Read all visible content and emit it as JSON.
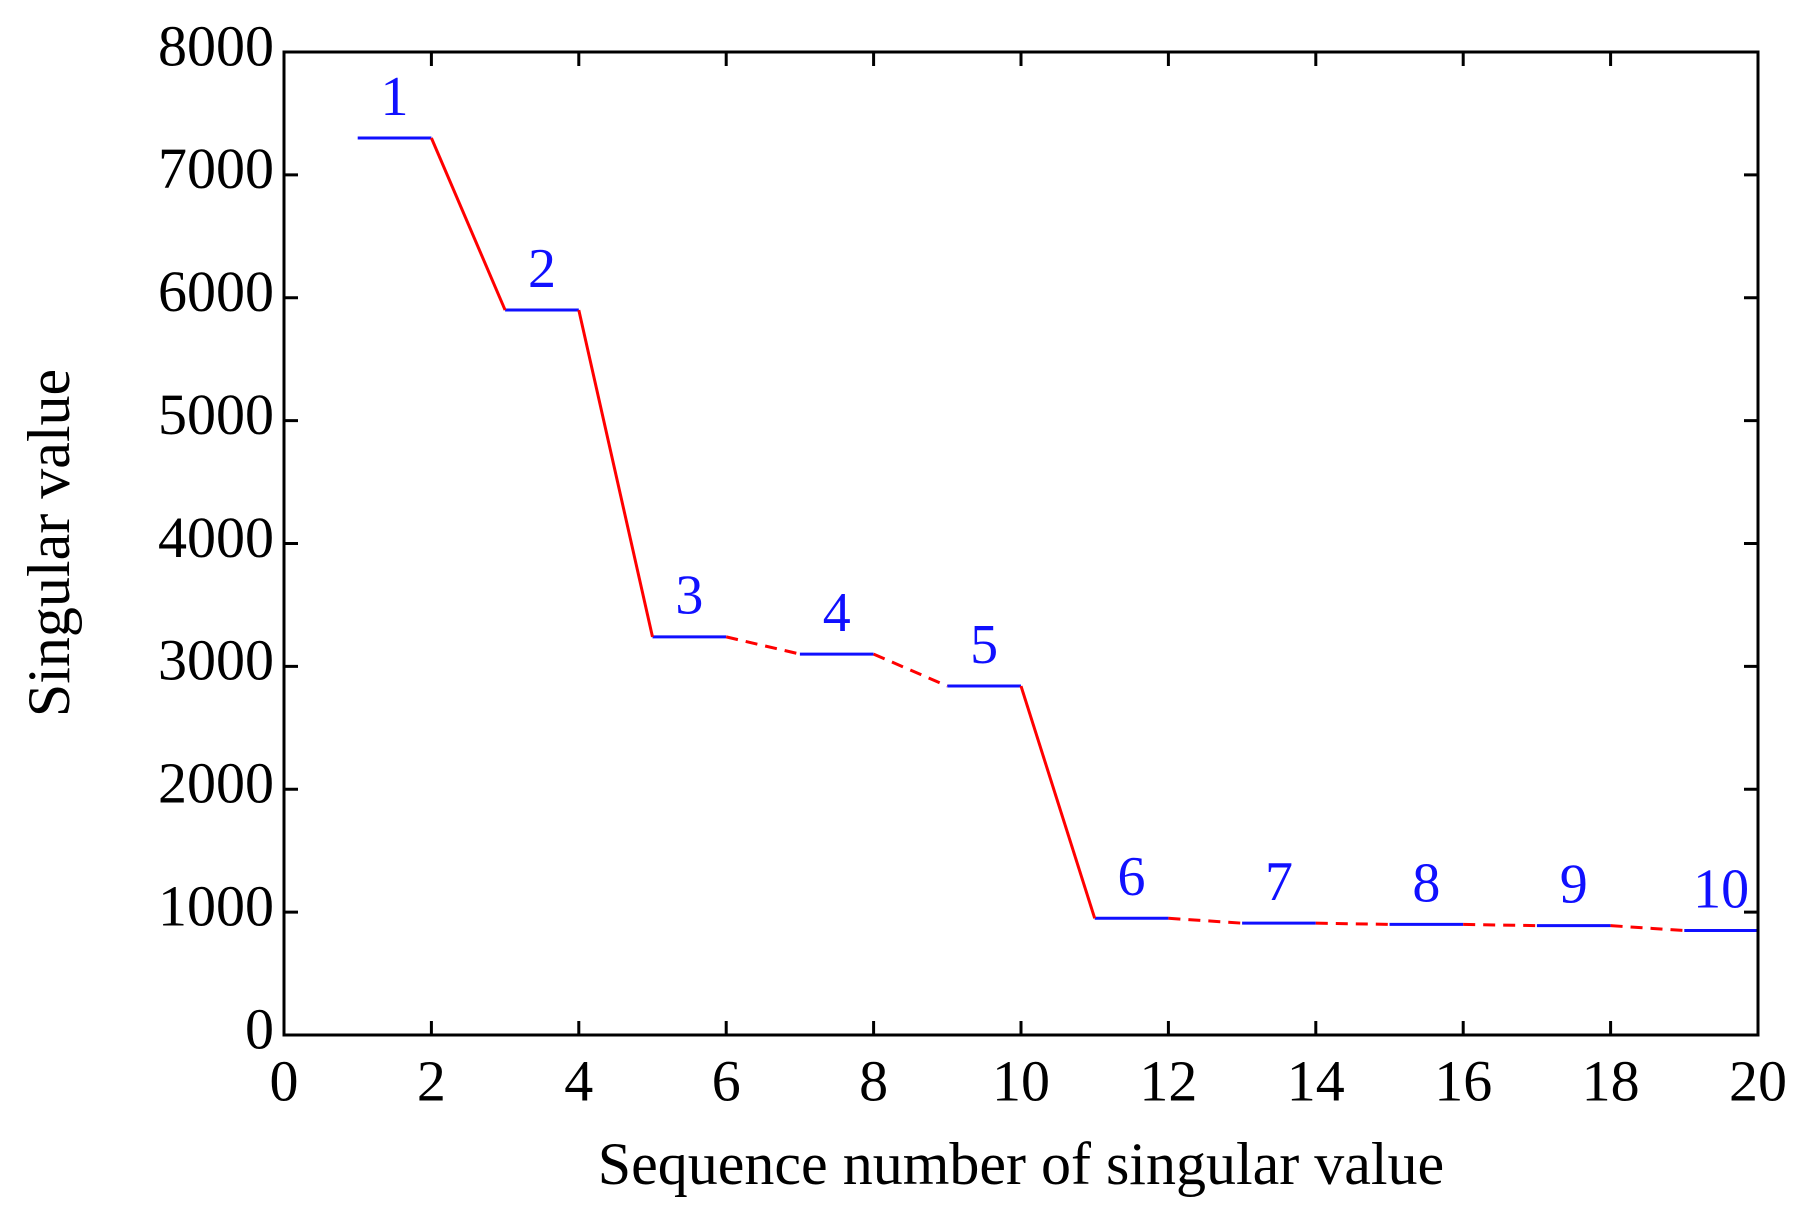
{
  "chart_data": {
    "type": "step-pairs",
    "xlabel": "Sequence number of singular value",
    "ylabel": "Singular value",
    "x": [
      1,
      2,
      3,
      4,
      5,
      6,
      7,
      8,
      9,
      10,
      11,
      12,
      13,
      14,
      15,
      16,
      17,
      18,
      19,
      20
    ],
    "values": [
      7300,
      7300,
      5900,
      5900,
      3240,
      3240,
      3100,
      3100,
      2840,
      2840,
      950,
      950,
      910,
      910,
      900,
      900,
      890,
      890,
      850,
      850
    ],
    "group_labels": [
      1,
      2,
      3,
      4,
      5,
      6,
      7,
      8,
      9,
      10
    ],
    "pair_color": "#1010ff",
    "link_color": "#ff0000",
    "link_styles": [
      "solid",
      "solid",
      "dashed",
      "dashed",
      "solid",
      "dashed",
      "dashed",
      "dashed",
      "dashed"
    ],
    "xlim": [
      0,
      20
    ],
    "xticks": [
      0,
      2,
      4,
      6,
      8,
      10,
      12,
      14,
      16,
      18,
      20
    ],
    "ylim": [
      0,
      8000
    ],
    "yticks": [
      0,
      1000,
      2000,
      3000,
      4000,
      5000,
      6000,
      7000,
      8000
    ]
  }
}
